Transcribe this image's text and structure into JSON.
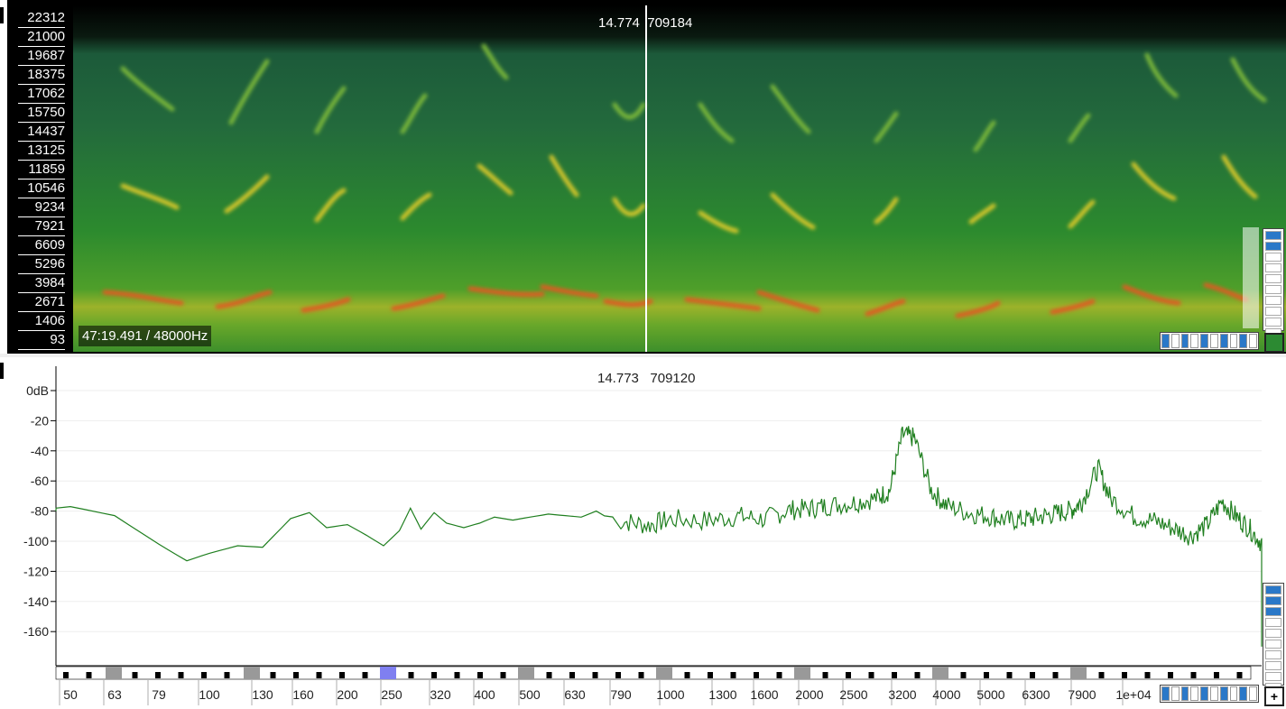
{
  "spectrogram": {
    "freq_ticks": [
      "22312",
      "21000",
      "19687",
      "18375",
      "17062",
      "15750",
      "14437",
      "13125",
      "11859",
      "10546",
      "9234",
      "7921",
      "6609",
      "5296",
      "3984",
      "2671",
      "1406",
      "93"
    ],
    "cursor_time": "14.774",
    "cursor_sample": "709184",
    "position_label": "47:19.491 / 48000Hz"
  },
  "spectrum": {
    "cursor_time": "14.773",
    "cursor_sample": "709120",
    "add_button": "+"
  },
  "chart_data": {
    "type": "line",
    "title": "",
    "xlabel": "",
    "ylabel": "",
    "x_scale": "log",
    "y_ticks": [
      "0dB",
      "-20",
      "-40",
      "-60",
      "-80",
      "-100",
      "-120",
      "-140",
      "-160"
    ],
    "x_ticks": [
      "50",
      "63",
      "79",
      "100",
      "130",
      "160",
      "200",
      "250",
      "320",
      "400",
      "500",
      "630",
      "790",
      "1000",
      "1300",
      "1600",
      "2000",
      "2500",
      "3200",
      "4000",
      "5000",
      "6300",
      "7900",
      "1e+04"
    ],
    "ylim": [
      -180,
      0
    ],
    "series": [
      {
        "color": "#1f7f1f",
        "x": [
          40,
          50,
          63,
          79,
          90,
          100,
          115,
          130,
          150,
          165,
          180,
          200,
          220,
          240,
          260,
          275,
          290,
          310,
          330,
          360,
          390,
          420,
          460,
          500,
          550,
          600,
          650,
          700,
          790,
          900,
          1000,
          1200,
          1400,
          1600,
          1800,
          2000,
          2200,
          2500,
          2800,
          3000,
          3200,
          3400,
          3700,
          4000,
          4500,
          5000,
          5500,
          6000,
          6500,
          7000,
          7500,
          7900,
          8500,
          9000,
          10000.0,
          11000,
          12000,
          13000,
          14000,
          15000,
          16000,
          17000,
          18000,
          19000,
          20000
        ],
        "y": [
          -80,
          -77,
          -83,
          -102,
          -113,
          -108,
          -103,
          -104,
          -85,
          -81,
          -91,
          -89,
          -96,
          -103,
          -93,
          -78,
          -92,
          -81,
          -88,
          -91,
          -88,
          -84,
          -86,
          -84,
          -82,
          -83,
          -84,
          -80,
          -85,
          -88,
          -84,
          -85,
          -82,
          -84,
          -78,
          -77,
          -75,
          -73,
          -70,
          -65,
          -28,
          -30,
          -65,
          -75,
          -80,
          -82,
          -85,
          -84,
          -82,
          -80,
          -78,
          -72,
          -50,
          -70,
          -82,
          -85,
          -90,
          -95,
          -88,
          -72,
          -82,
          -90,
          -100,
          -120,
          -170
        ]
      }
    ]
  }
}
